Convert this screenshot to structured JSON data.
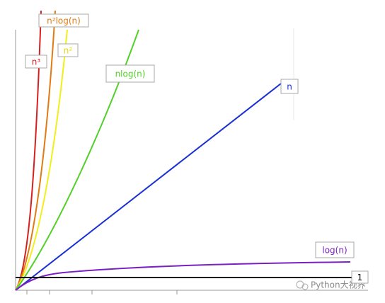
{
  "chart_data": {
    "type": "line",
    "series": [
      {
        "name": "n³",
        "color": "#d62020"
      },
      {
        "name": "n²log(n)",
        "color": "#e07b14"
      },
      {
        "name": "n²",
        "color": "#f2ee1a"
      },
      {
        "name": "nlog(n)",
        "color": "#52d12a"
      },
      {
        "name": "n",
        "color": "#1a2fd6"
      },
      {
        "name": "log(n)",
        "color": "#7a1fc4"
      },
      {
        "name": "1",
        "color": "#000000"
      }
    ],
    "watermark": "Python大视界"
  }
}
